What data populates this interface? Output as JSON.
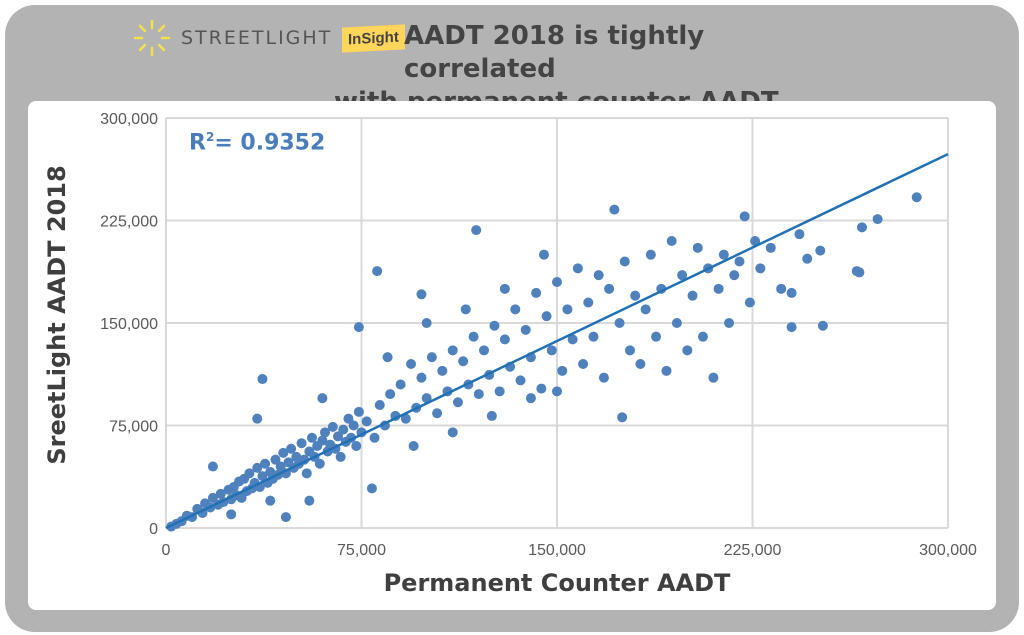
{
  "header": {
    "brand": "STREETLIGHT",
    "badge": "InSight",
    "title_line1": "AADT 2018 is tightly correlated",
    "title_line2": "with permanent counter AADT",
    "logo_color": "#f4e04d",
    "badge_color": "#ffd65a"
  },
  "chart_data": {
    "type": "scatter",
    "xlabel": "Permanent Counter AADT",
    "ylabel": "SreetLight AADT 2018",
    "xlim": [
      0,
      300000
    ],
    "ylim": [
      0,
      300000
    ],
    "xticks": [
      "0",
      "75,000",
      "150,000",
      "225,000",
      "300,000"
    ],
    "yticks": [
      "0",
      "75,000",
      "150,000",
      "225,000",
      "300,000"
    ],
    "xtick_values": [
      0,
      75000,
      150000,
      225000,
      300000
    ],
    "ytick_values": [
      0,
      75000,
      150000,
      225000,
      300000
    ],
    "grid": true,
    "annotation": {
      "prefix": "R",
      "sup": "2",
      "text": "= 0.9352"
    },
    "trendline": {
      "type": "linear",
      "slope": 0.912,
      "intercept": 0,
      "color": "#2171b5"
    },
    "point_color": "#4f81bd",
    "points": [
      [
        2000,
        1000
      ],
      [
        4000,
        3000
      ],
      [
        6000,
        5000
      ],
      [
        8000,
        9000
      ],
      [
        10000,
        8000
      ],
      [
        12000,
        14000
      ],
      [
        14000,
        11000
      ],
      [
        15000,
        18000
      ],
      [
        17000,
        15000
      ],
      [
        18000,
        22000
      ],
      [
        20000,
        17000
      ],
      [
        21000,
        25000
      ],
      [
        22000,
        19000
      ],
      [
        24000,
        28000
      ],
      [
        25000,
        21000
      ],
      [
        26000,
        30000
      ],
      [
        27000,
        24000
      ],
      [
        28000,
        34000
      ],
      [
        29000,
        22000
      ],
      [
        30000,
        36000
      ],
      [
        31000,
        27000
      ],
      [
        32000,
        40000
      ],
      [
        33000,
        29000
      ],
      [
        34000,
        33000
      ],
      [
        35000,
        44000
      ],
      [
        36000,
        30000
      ],
      [
        37000,
        38000
      ],
      [
        38000,
        47000
      ],
      [
        39000,
        33000
      ],
      [
        40000,
        41000
      ],
      [
        41000,
        36000
      ],
      [
        42000,
        50000
      ],
      [
        43000,
        39000
      ],
      [
        44000,
        45000
      ],
      [
        45000,
        55000
      ],
      [
        46000,
        40000
      ],
      [
        47000,
        48000
      ],
      [
        48000,
        58000
      ],
      [
        49000,
        44000
      ],
      [
        50000,
        52000
      ],
      [
        51000,
        47000
      ],
      [
        52000,
        62000
      ],
      [
        53000,
        50000
      ],
      [
        54000,
        40000
      ],
      [
        55000,
        56000
      ],
      [
        56000,
        66000
      ],
      [
        57000,
        52000
      ],
      [
        58000,
        60000
      ],
      [
        59000,
        47000
      ],
      [
        60000,
        64000
      ],
      [
        61000,
        70000
      ],
      [
        62000,
        56000
      ],
      [
        63000,
        61000
      ],
      [
        64000,
        74000
      ],
      [
        65000,
        58000
      ],
      [
        66000,
        67000
      ],
      [
        67000,
        52000
      ],
      [
        68000,
        72000
      ],
      [
        69000,
        63000
      ],
      [
        70000,
        80000
      ],
      [
        71000,
        66000
      ],
      [
        72000,
        75000
      ],
      [
        73000,
        60000
      ],
      [
        74000,
        85000
      ],
      [
        75000,
        70000
      ],
      [
        46000,
        8000
      ],
      [
        79000,
        29000
      ],
      [
        37000,
        109000
      ],
      [
        74000,
        147000
      ],
      [
        81000,
        188000
      ],
      [
        98000,
        171000
      ],
      [
        35000,
        80000
      ],
      [
        18000,
        45000
      ],
      [
        25000,
        10000
      ],
      [
        60000,
        95000
      ],
      [
        55000,
        20000
      ],
      [
        40000,
        20000
      ],
      [
        77000,
        78000
      ],
      [
        80000,
        66000
      ],
      [
        82000,
        90000
      ],
      [
        84000,
        75000
      ],
      [
        86000,
        98000
      ],
      [
        88000,
        82000
      ],
      [
        90000,
        105000
      ],
      [
        92000,
        80000
      ],
      [
        94000,
        120000
      ],
      [
        96000,
        88000
      ],
      [
        98000,
        110000
      ],
      [
        100000,
        95000
      ],
      [
        102000,
        125000
      ],
      [
        104000,
        84000
      ],
      [
        106000,
        115000
      ],
      [
        108000,
        100000
      ],
      [
        110000,
        130000
      ],
      [
        112000,
        92000
      ],
      [
        114000,
        122000
      ],
      [
        116000,
        105000
      ],
      [
        118000,
        140000
      ],
      [
        119000,
        218000
      ],
      [
        120000,
        98000
      ],
      [
        122000,
        130000
      ],
      [
        124000,
        112000
      ],
      [
        126000,
        148000
      ],
      [
        128000,
        100000
      ],
      [
        130000,
        138000
      ],
      [
        132000,
        118000
      ],
      [
        134000,
        160000
      ],
      [
        136000,
        108000
      ],
      [
        138000,
        145000
      ],
      [
        140000,
        125000
      ],
      [
        142000,
        172000
      ],
      [
        144000,
        102000
      ],
      [
        146000,
        155000
      ],
      [
        148000,
        130000
      ],
      [
        150000,
        180000
      ],
      [
        152000,
        115000
      ],
      [
        154000,
        160000
      ],
      [
        156000,
        138000
      ],
      [
        158000,
        190000
      ],
      [
        160000,
        120000
      ],
      [
        95000,
        60000
      ],
      [
        110000,
        70000
      ],
      [
        125000,
        82000
      ],
      [
        140000,
        95000
      ],
      [
        150000,
        100000
      ],
      [
        85000,
        125000
      ],
      [
        100000,
        150000
      ],
      [
        115000,
        160000
      ],
      [
        130000,
        175000
      ],
      [
        145000,
        200000
      ],
      [
        162000,
        165000
      ],
      [
        164000,
        140000
      ],
      [
        166000,
        185000
      ],
      [
        168000,
        110000
      ],
      [
        170000,
        175000
      ],
      [
        172000,
        233000
      ],
      [
        174000,
        150000
      ],
      [
        175000,
        81000
      ],
      [
        176000,
        195000
      ],
      [
        178000,
        130000
      ],
      [
        180000,
        170000
      ],
      [
        182000,
        120000
      ],
      [
        184000,
        160000
      ],
      [
        186000,
        200000
      ],
      [
        188000,
        140000
      ],
      [
        190000,
        175000
      ],
      [
        192000,
        115000
      ],
      [
        194000,
        210000
      ],
      [
        196000,
        150000
      ],
      [
        198000,
        185000
      ],
      [
        200000,
        130000
      ],
      [
        202000,
        170000
      ],
      [
        204000,
        205000
      ],
      [
        206000,
        140000
      ],
      [
        208000,
        190000
      ],
      [
        210000,
        110000
      ],
      [
        212000,
        175000
      ],
      [
        214000,
        200000
      ],
      [
        216000,
        150000
      ],
      [
        218000,
        185000
      ],
      [
        220000,
        195000
      ],
      [
        222000,
        228000
      ],
      [
        224000,
        165000
      ],
      [
        226000,
        210000
      ],
      [
        228000,
        190000
      ],
      [
        232000,
        205000
      ],
      [
        236000,
        175000
      ],
      [
        240000,
        172000
      ],
      [
        240000,
        147000
      ],
      [
        243000,
        215000
      ],
      [
        246000,
        197000
      ],
      [
        251000,
        203000
      ],
      [
        252000,
        148000
      ],
      [
        265000,
        188000
      ],
      [
        266000,
        187000
      ],
      [
        267000,
        220000
      ],
      [
        273000,
        226000
      ],
      [
        288000,
        242000
      ]
    ]
  }
}
